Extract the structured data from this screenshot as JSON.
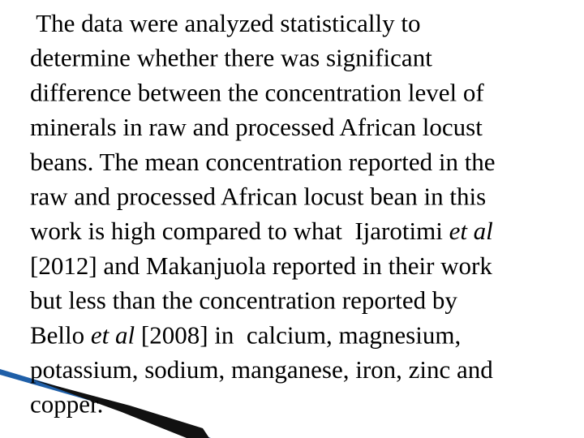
{
  "paragraph": {
    "lines": [
      [
        " The data were analyzed statistically to"
      ],
      [
        "determine whether there was significant"
      ],
      [
        "difference between the concentration level of"
      ],
      [
        "minerals in raw and processed African locust"
      ],
      [
        "beans. The mean concentration reported in the"
      ],
      [
        "raw and processed African locust bean in this"
      ],
      [
        "work is high compared to what  Ijarotimi ",
        {
          "text": "et al",
          "italic": true
        }
      ],
      [
        "[2012] and Makanjuola reported in their work"
      ],
      [
        "but less than the concentration reported by"
      ],
      [
        "Bello ",
        {
          "text": "et al",
          "italic": true
        },
        " [2008] in  calcium, magnesium,"
      ],
      [
        "potassium, sodium, manganese, iron, zinc and"
      ],
      [
        "copper."
      ]
    ]
  }
}
